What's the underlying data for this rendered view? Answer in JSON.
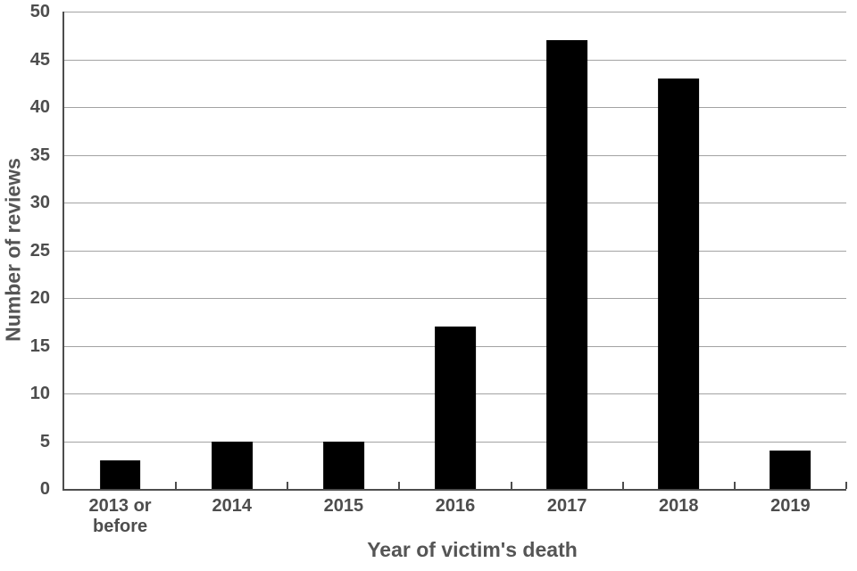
{
  "chart_data": {
    "type": "bar",
    "title": "",
    "xlabel": "Year of victim's death",
    "ylabel": "Number of reviews",
    "categories": [
      "2013 or before",
      "2014",
      "2015",
      "2016",
      "2017",
      "2018",
      "2019"
    ],
    "values": [
      3,
      5,
      5,
      17,
      47,
      43,
      4
    ],
    "ylim": [
      0,
      50
    ],
    "ytick_step": 5,
    "yticks": [
      0,
      5,
      10,
      15,
      20,
      25,
      30,
      35,
      40,
      45,
      50
    ],
    "grid": true,
    "legend": false,
    "bar_slot_fraction": 0.366,
    "colors": {
      "bar": "#000000",
      "gridline": "#a3a3a3",
      "axis": "#4d4d4d",
      "tick_label": "#4d4d4d",
      "axis_title": "#555555",
      "background": "#ffffff"
    }
  }
}
